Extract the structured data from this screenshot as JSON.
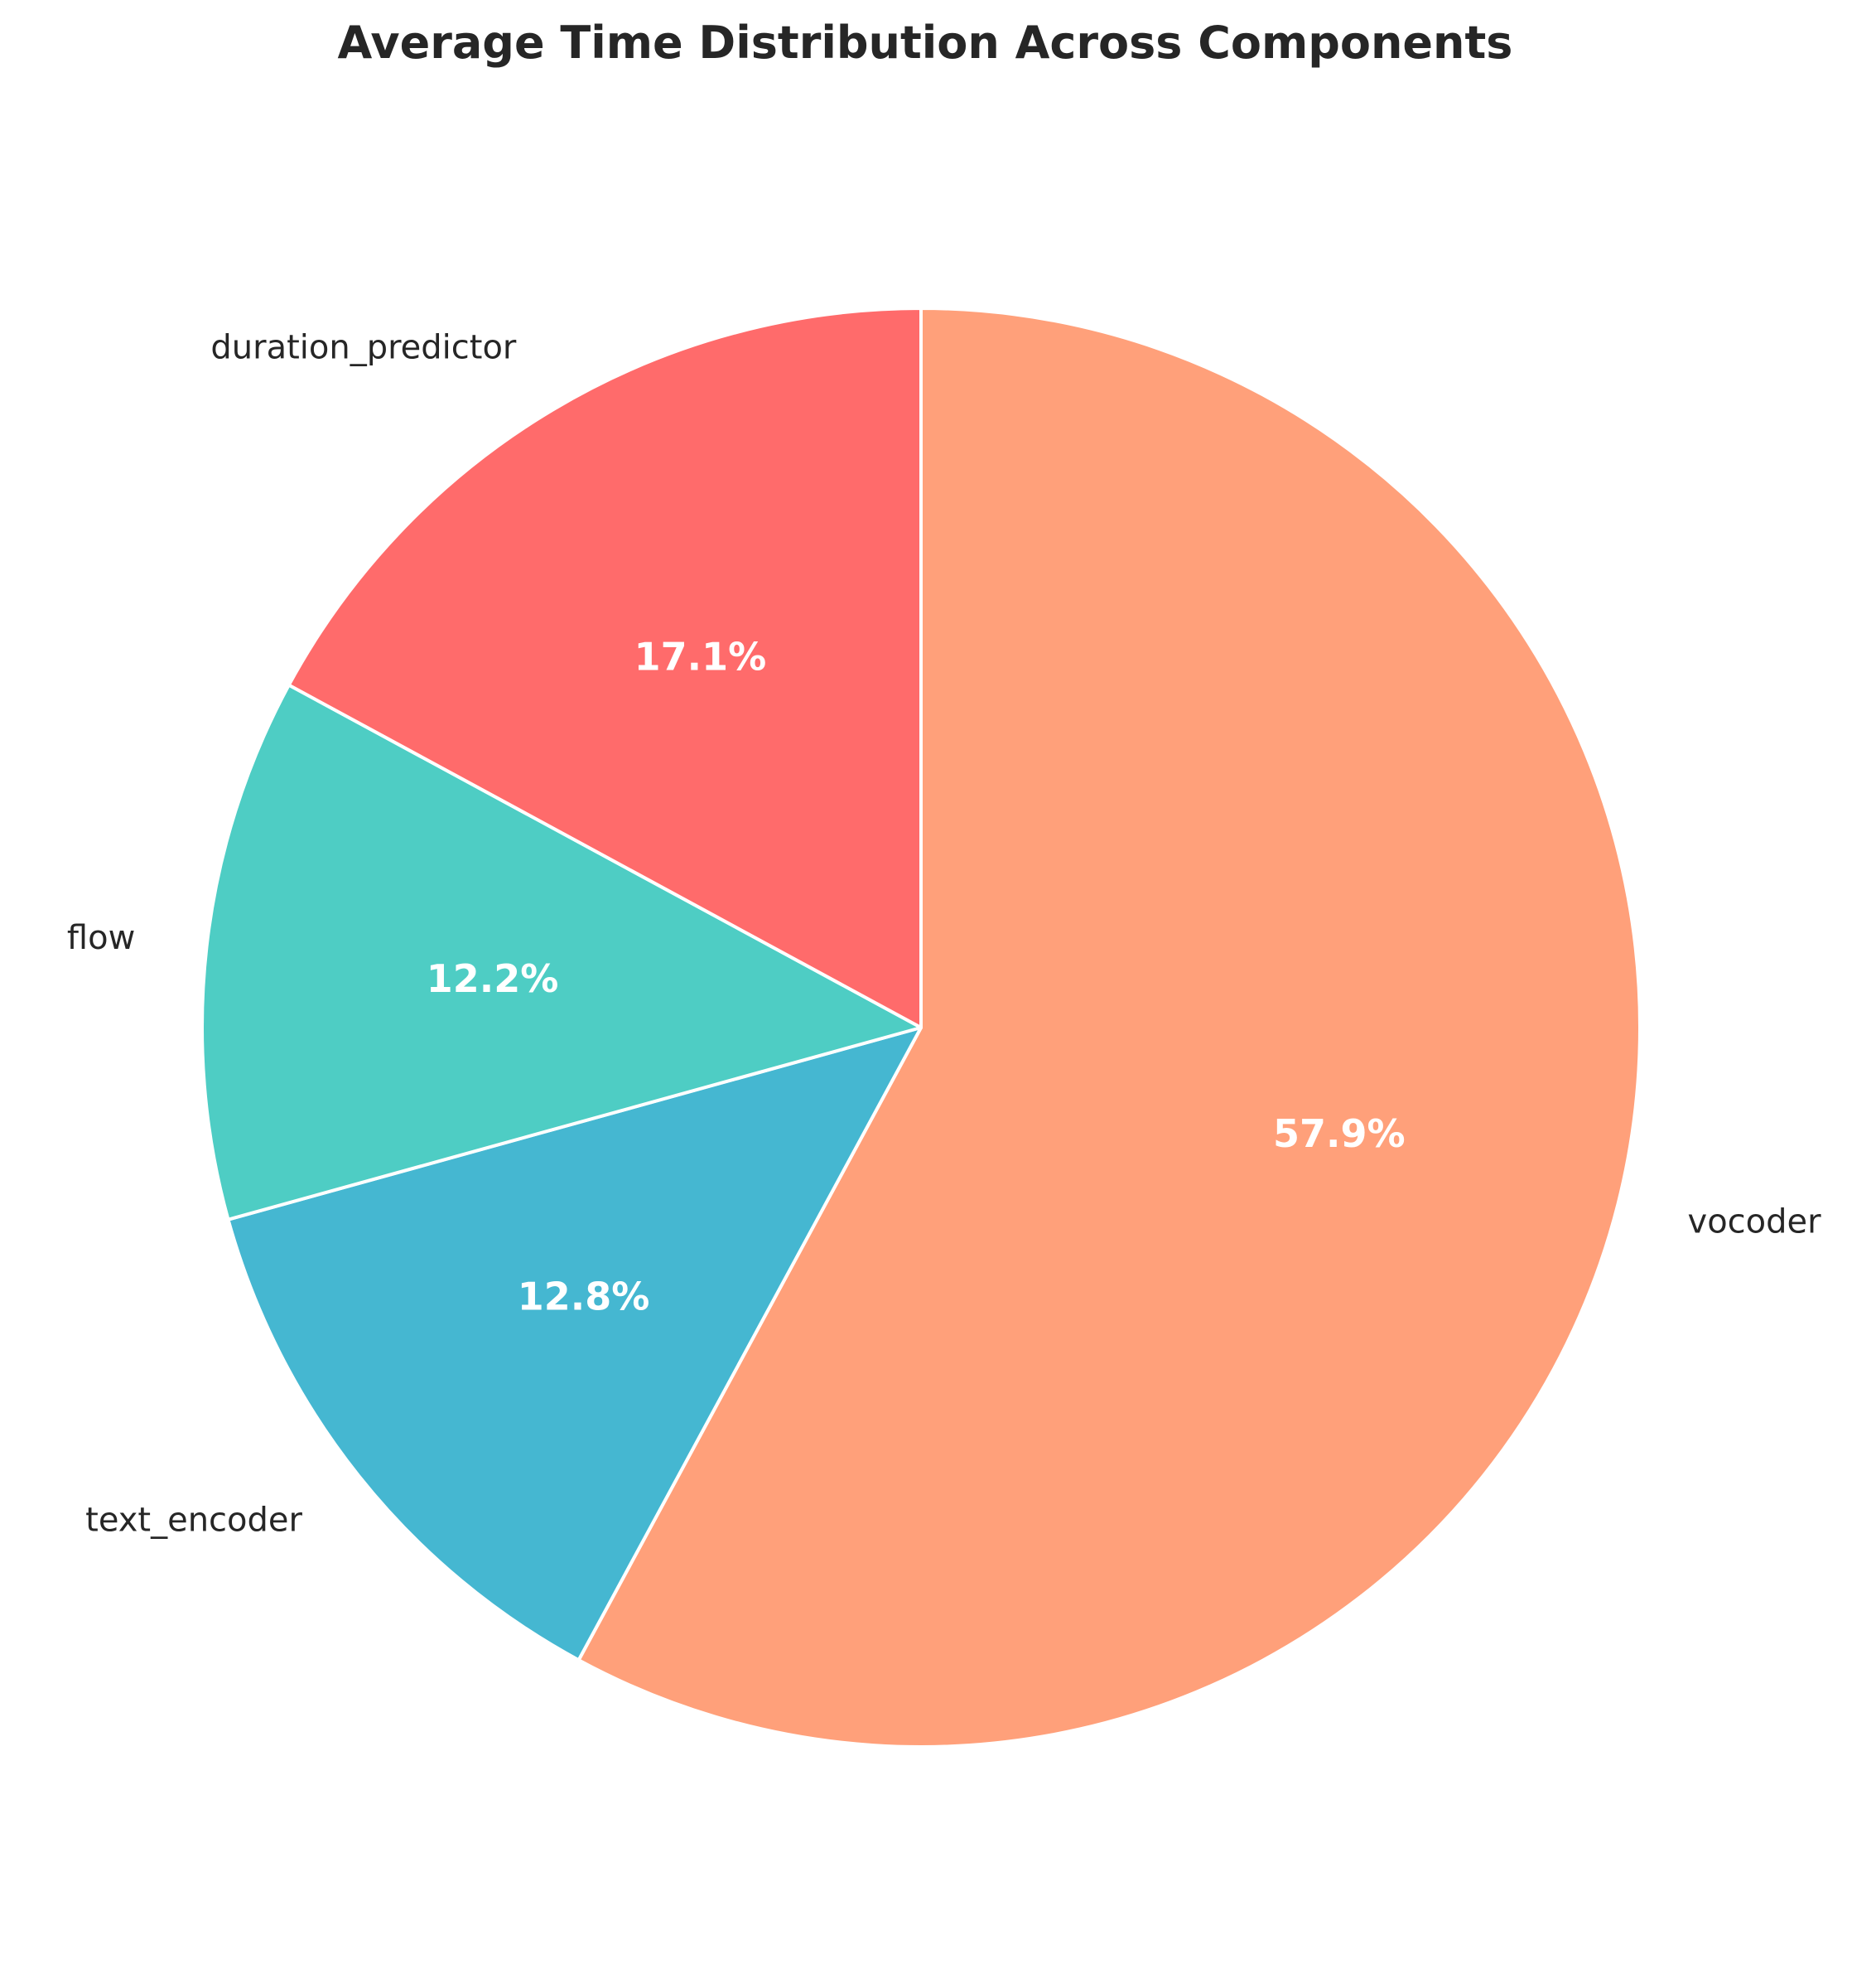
{
  "chart_data": {
    "type": "pie",
    "title": "Average Time Distribution Across Components",
    "categories": [
      "vocoder",
      "text_encoder",
      "flow",
      "duration_predictor"
    ],
    "values": [
      57.9,
      12.8,
      12.2,
      17.1
    ],
    "percent_labels": [
      "57.9%",
      "12.8%",
      "12.2%",
      "17.1%"
    ],
    "colors": [
      "#FFA07A",
      "#45B7D1",
      "#4ECDC4",
      "#FF6B6B"
    ],
    "start_angle_deg": 90,
    "direction": "clockwise",
    "edge_color": "#ffffff",
    "legend": "none"
  }
}
